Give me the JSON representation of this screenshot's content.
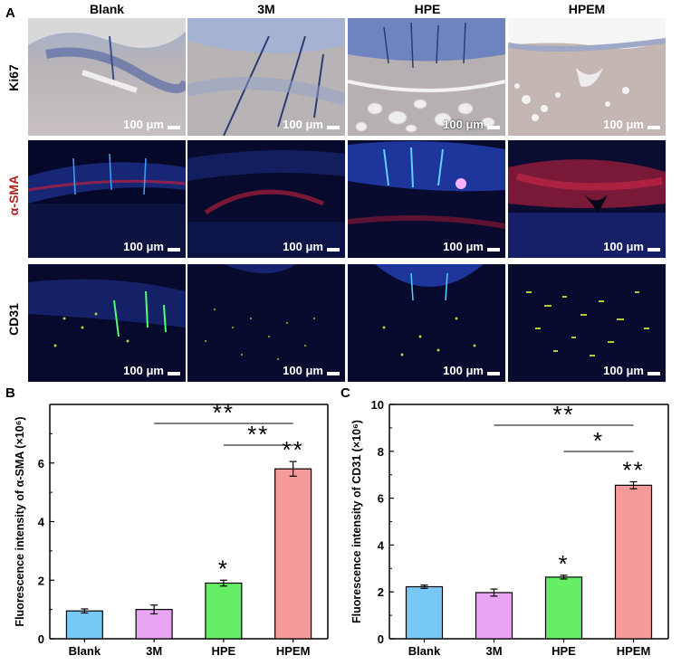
{
  "figure": {
    "panel_a_letter": "A",
    "panel_b_letter": "B",
    "panel_c_letter": "C",
    "columns": [
      "Blank",
      "3M",
      "HPE",
      "HPEM"
    ],
    "rows": [
      "Ki67",
      "α-SMA",
      "CD31"
    ],
    "scale_bar_label": "100 μm"
  },
  "chart_data": [
    {
      "type": "bar",
      "panel": "B",
      "categories": [
        "Blank",
        "3M",
        "HPE",
        "HPEM"
      ],
      "values": [
        0.95,
        1.0,
        1.9,
        5.8
      ],
      "errors": [
        0.07,
        0.15,
        0.1,
        0.25
      ],
      "colors": [
        "#78c8f5",
        "#e8a6f2",
        "#66ee66",
        "#f79a9a"
      ],
      "ylabel": "Fluorescence intensity of α-SMA (×10⁶)",
      "ylim": [
        0,
        8
      ],
      "yticks": [
        0,
        2,
        4,
        6
      ],
      "bar_marks": [
        "",
        "",
        "*",
        "**"
      ],
      "brackets": [
        {
          "from": "3M",
          "to": "HPEM",
          "label": "**"
        },
        {
          "from": "HPE",
          "to": "HPEM",
          "label": "**"
        }
      ]
    },
    {
      "type": "bar",
      "panel": "C",
      "categories": [
        "Blank",
        "3M",
        "HPE",
        "HPEM"
      ],
      "values": [
        2.22,
        1.97,
        2.63,
        6.55
      ],
      "errors": [
        0.07,
        0.15,
        0.08,
        0.15
      ],
      "colors": [
        "#78c8f5",
        "#e8a6f2",
        "#66ee66",
        "#f79a9a"
      ],
      "ylabel": "Fluorescence intensity of CD31 (×10⁶)",
      "ylim": [
        0,
        10
      ],
      "yticks": [
        0,
        2,
        4,
        6,
        8,
        10
      ],
      "bar_marks": [
        "",
        "",
        "*",
        "**"
      ],
      "brackets": [
        {
          "from": "3M",
          "to": "HPEM",
          "label": "**"
        },
        {
          "from": "HPE",
          "to": "HPEM",
          "label": "*"
        }
      ]
    }
  ]
}
